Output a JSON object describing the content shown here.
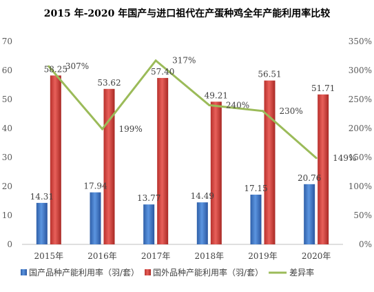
{
  "chart_data": {
    "type": "bar",
    "title": "2015 年-2020 年国产与进口祖代在产蛋种鸡全年产能利用率比较",
    "categories": [
      "2015年",
      "2016年",
      "2017年",
      "2018年",
      "2019年",
      "2020年"
    ],
    "series": [
      {
        "name": "国产品种产能利用率（羽/套）",
        "type": "bar",
        "axis": "left",
        "color": "#3f78c9",
        "values": [
          14.31,
          17.94,
          13.77,
          14.49,
          17.15,
          20.76
        ],
        "labels": [
          "14.31",
          "17.94",
          "13.77",
          "14.49",
          "17.15",
          "20.76"
        ]
      },
      {
        "name": "国外品种产能利用率（羽/套）",
        "type": "bar",
        "axis": "left",
        "color": "#d9403c",
        "values": [
          58.25,
          53.62,
          57.4,
          49.21,
          56.51,
          51.71
        ],
        "labels": [
          "58.25",
          "53.62",
          "57.40",
          "49.21",
          "56.51",
          "51.71"
        ]
      },
      {
        "name": "差异率",
        "type": "line",
        "axis": "right",
        "color": "#9bbb59",
        "values": [
          307,
          199,
          317,
          240,
          230,
          149
        ],
        "labels": [
          "307%",
          "199%",
          "317%",
          "240%",
          "230%",
          "149%"
        ]
      }
    ],
    "y_left": {
      "min": 0,
      "max": 70,
      "ticks": [
        0,
        10,
        20,
        30,
        40,
        50,
        60,
        70
      ],
      "tick_labels": [
        "0",
        "10",
        "20",
        "30",
        "40",
        "50",
        "60",
        "70"
      ]
    },
    "y_right": {
      "min": 0,
      "max": 350,
      "ticks": [
        0,
        50,
        100,
        150,
        200,
        250,
        300,
        350
      ],
      "tick_labels": [
        "0%",
        "50%",
        "100%",
        "150%",
        "200%",
        "250%",
        "300%",
        "350%"
      ]
    },
    "grid": false,
    "legend": "bottom"
  }
}
